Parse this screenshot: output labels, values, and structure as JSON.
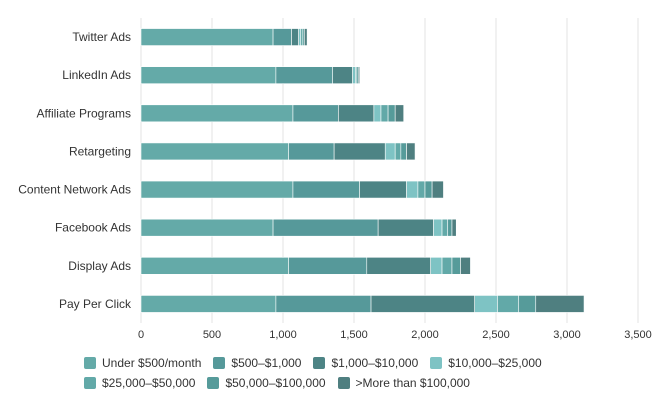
{
  "chart_data": {
    "type": "bar",
    "orientation": "horizontal",
    "stacked": true,
    "categories": [
      "Twitter Ads",
      "LinkedIn Ads",
      "Affiliate Programs",
      "Retargeting",
      "Content Network Ads",
      "Facebook Ads",
      "Display Ads",
      "Pay Per Click"
    ],
    "series": [
      {
        "name": "Under $500/month",
        "color": "#64aaa8",
        "values": [
          930,
          950,
          1070,
          1040,
          1070,
          930,
          1040,
          950
        ]
      },
      {
        "name": "$500–$1,000",
        "color": "#56999a",
        "values": [
          130,
          400,
          320,
          320,
          470,
          740,
          550,
          670
        ]
      },
      {
        "name": "$1,000–$10,000",
        "color": "#4d8485",
        "values": [
          50,
          140,
          250,
          360,
          330,
          390,
          450,
          730
        ]
      },
      {
        "name": "$10,000–$25,000",
        "color": "#7ec3c4",
        "values": [
          15,
          20,
          50,
          70,
          80,
          60,
          80,
          160
        ]
      },
      {
        "name": "$25,000–$50,000",
        "color": "#62a9a8",
        "values": [
          15,
          10,
          50,
          40,
          50,
          40,
          70,
          150
        ]
      },
      {
        "name": "$50,000–$100,000",
        "color": "#569b9a",
        "values": [
          10,
          10,
          50,
          40,
          50,
          30,
          60,
          120
        ]
      },
      {
        "name": ">More than $100,000",
        "color": "#4f7f80",
        "values": [
          20,
          10,
          60,
          60,
          80,
          30,
          70,
          340
        ]
      }
    ],
    "xlim": [
      0,
      3500
    ],
    "xticks": [
      "0",
      "500",
      "1,000",
      "1,500",
      "2,000",
      "2,500",
      "3,000",
      "3,500"
    ],
    "grid": true,
    "legend_position": "bottom"
  }
}
